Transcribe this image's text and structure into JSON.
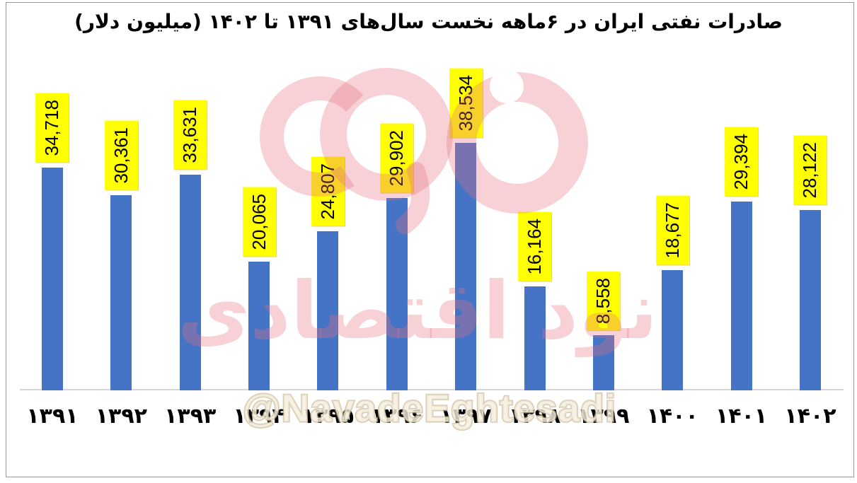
{
  "title": "صادرات نفتی ایران در ۶ماهه نخست سال‌های ۱۳۹۱ تا ۱۴۰۲ (میلیون دلار)",
  "watermark": {
    "handle": "@NavadeEghtesadi",
    "logo_text": "نود اقتصادی"
  },
  "colors": {
    "bar": "#4573c6",
    "value_label_bg": "#ffff00",
    "value_label_text": "#000000",
    "title_text": "#000000",
    "axis_line": "#d6d6d6",
    "frame_border": "#9a9a9a",
    "watermark_pink": "#e5707e",
    "watermark_handle_fill": "#f5efdf",
    "watermark_handle_stroke": "#c9b793"
  },
  "chart_data": {
    "type": "bar",
    "title": "صادرات نفتی ایران در ۶ماهه نخست سال‌های ۱۳۹۱ تا ۱۴۰۲ (میلیون دلار)",
    "categories": [
      "۱۳۹۱",
      "۱۳۹۲",
      "۱۳۹۳",
      "۱۳۹۴",
      "۱۳۹۵",
      "۱۳۹۶",
      "۱۳۹۷",
      "۱۳۹۸",
      "۱۳۹۹",
      "۱۴۰۰",
      "۱۴۰۱",
      "۱۴۰۲"
    ],
    "values": [
      34718,
      30361,
      33631,
      20065,
      24807,
      29902,
      38534,
      16164,
      8558,
      18677,
      29394,
      28122
    ],
    "value_labels": [
      "34,718",
      "30,361",
      "33,631",
      "20,065",
      "24,807",
      "29,902",
      "38,534",
      "16,164",
      "8,558",
      "18,677",
      "29,394",
      "28,122"
    ],
    "xlabel": "",
    "ylabel": "",
    "ylim": [
      0,
      40000
    ],
    "grid": false,
    "legend": "none",
    "bar_color": "#4573c6",
    "value_label_bg": "#ffff00",
    "value_label_rotation": "vertical-bottom-up",
    "x_axis_order": "years ascending left to right"
  }
}
